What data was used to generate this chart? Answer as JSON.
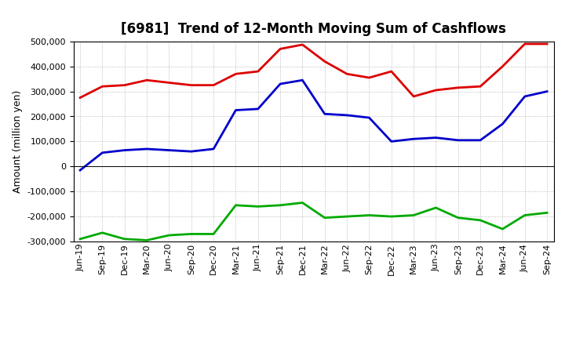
{
  "title": "[6981]  Trend of 12-Month Moving Sum of Cashflows",
  "ylabel": "Amount (million yen)",
  "background_color": "#ffffff",
  "grid_color": "#aaaaaa",
  "x_labels": [
    "Jun-19",
    "Sep-19",
    "Dec-19",
    "Mar-20",
    "Jun-20",
    "Sep-20",
    "Dec-20",
    "Mar-21",
    "Jun-21",
    "Sep-21",
    "Dec-21",
    "Mar-22",
    "Jun-22",
    "Sep-22",
    "Dec-22",
    "Mar-23",
    "Jun-23",
    "Sep-23",
    "Dec-23",
    "Mar-24",
    "Jun-24",
    "Sep-24"
  ],
  "operating": [
    275000,
    320000,
    325000,
    345000,
    335000,
    325000,
    325000,
    370000,
    380000,
    470000,
    487000,
    420000,
    370000,
    355000,
    380000,
    280000,
    305000,
    315000,
    320000,
    400000,
    490000,
    490000
  ],
  "investing": [
    -290000,
    -265000,
    -290000,
    -295000,
    -275000,
    -270000,
    -270000,
    -155000,
    -160000,
    -155000,
    -145000,
    -205000,
    -200000,
    -195000,
    -200000,
    -195000,
    -165000,
    -205000,
    -215000,
    -250000,
    -195000,
    -185000
  ],
  "free": [
    -15000,
    55000,
    65000,
    70000,
    65000,
    60000,
    70000,
    225000,
    230000,
    330000,
    345000,
    210000,
    205000,
    195000,
    100000,
    110000,
    115000,
    105000,
    105000,
    170000,
    280000,
    300000
  ],
  "ylim": [
    -300000,
    500000
  ],
  "yticks": [
    -300000,
    -200000,
    -100000,
    0,
    100000,
    200000,
    300000,
    400000,
    500000
  ],
  "operating_color": "#dd0000",
  "investing_color": "#00aa00",
  "free_color": "#0000cc",
  "linewidth": 2.0,
  "title_fontsize": 12,
  "axis_fontsize": 9,
  "tick_fontsize": 8,
  "legend_fontsize": 9
}
